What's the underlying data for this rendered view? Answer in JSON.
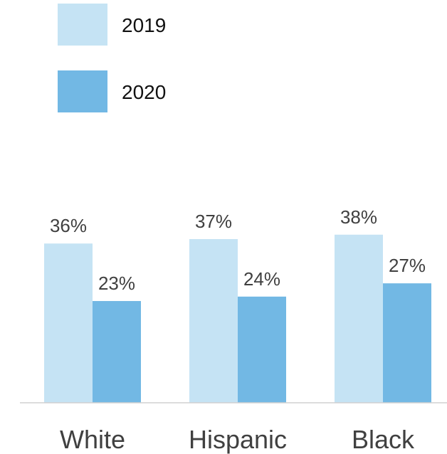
{
  "chart_data": {
    "type": "bar",
    "categories": [
      "White",
      "Hispanic",
      "Black"
    ],
    "series": [
      {
        "name": "2019",
        "values": [
          36,
          37,
          38
        ],
        "color": "#c5e3f4"
      },
      {
        "name": "2020",
        "values": [
          23,
          24,
          27
        ],
        "color": "#72b8e4"
      }
    ],
    "value_suffix": "%",
    "ylim": [
      0,
      37
    ],
    "legend_position": "top-left",
    "grid": false,
    "axis_color": "#d0d0d0"
  }
}
